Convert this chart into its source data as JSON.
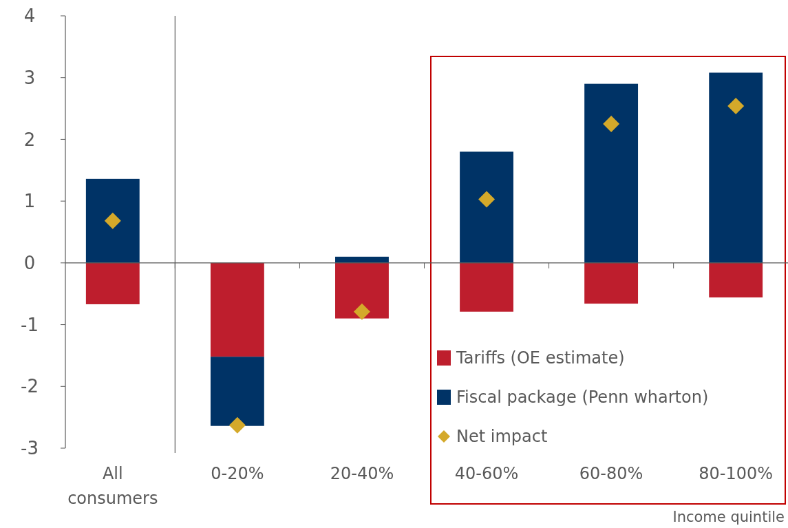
{
  "chart_data": {
    "type": "bar",
    "stacked": true,
    "xlabel": "Income quintile",
    "categories": [
      "All consumers",
      "0-20%",
      "20-40%",
      "40-60%",
      "60-80%",
      "80-100%"
    ],
    "series": [
      {
        "name": "Tariffs (OE estimate)",
        "color": "#be1e2d",
        "values": [
          -0.67,
          -1.52,
          -0.9,
          -0.79,
          -0.66,
          -0.56
        ]
      },
      {
        "name": "Fiscal package (Penn wharton)",
        "color": "#003366",
        "values": [
          1.36,
          -1.12,
          0.1,
          1.8,
          2.9,
          3.08
        ]
      },
      {
        "name": "Net impact",
        "type": "scatter",
        "marker": "diamond",
        "color": "#d4a92a",
        "x": [
          "All consumers",
          "0-20%",
          "20-40%",
          "40-60%",
          "60-80%",
          "80-100%"
        ],
        "values": [
          0.68,
          -2.63,
          -0.79,
          1.03,
          2.25,
          2.54
        ]
      }
    ],
    "ylim": [
      -3,
      4
    ],
    "yticks": [
      -3,
      -2,
      -1,
      0,
      1,
      2,
      3,
      4
    ],
    "legend": "bottom right"
  }
}
